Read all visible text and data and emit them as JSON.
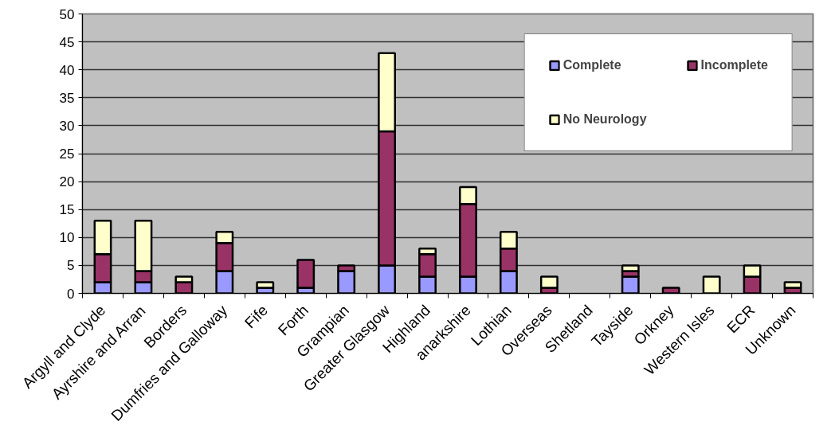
{
  "chart_data": {
    "type": "bar",
    "stacked": true,
    "categories": [
      "Argyll and Clyde",
      "Ayrshire and Arran",
      "Borders",
      "Dumfries and Galloway",
      "Fife",
      "Forth",
      "Grampian",
      "Greater Glasgow",
      "Highland",
      "anarkshire",
      "Lothian",
      "Overseas",
      "Shetland",
      "Tayside",
      "Orkney",
      "Western Isles",
      "ECR",
      "Unknown"
    ],
    "series": [
      {
        "name": "Complete",
        "color": "#9999ff",
        "values": [
          2,
          2,
          0,
          4,
          1,
          1,
          4,
          5,
          3,
          3,
          4,
          0,
          0,
          3,
          0,
          0,
          0,
          0
        ]
      },
      {
        "name": "Incomplete",
        "color": "#993366",
        "values": [
          5,
          2,
          2,
          5,
          0,
          5,
          1,
          24,
          4,
          13,
          4,
          1,
          0,
          1,
          1,
          0,
          3,
          1
        ]
      },
      {
        "name": "No Neurology",
        "color": "#ffffcc",
        "values": [
          6,
          9,
          1,
          2,
          1,
          0,
          0,
          14,
          1,
          3,
          3,
          2,
          0,
          1,
          0,
          3,
          2,
          1
        ]
      }
    ],
    "ylim": [
      0,
      50
    ],
    "yticks": [
      0,
      5,
      10,
      15,
      20,
      25,
      30,
      35,
      40,
      45,
      50
    ],
    "grid": "y",
    "legend": "top right"
  }
}
